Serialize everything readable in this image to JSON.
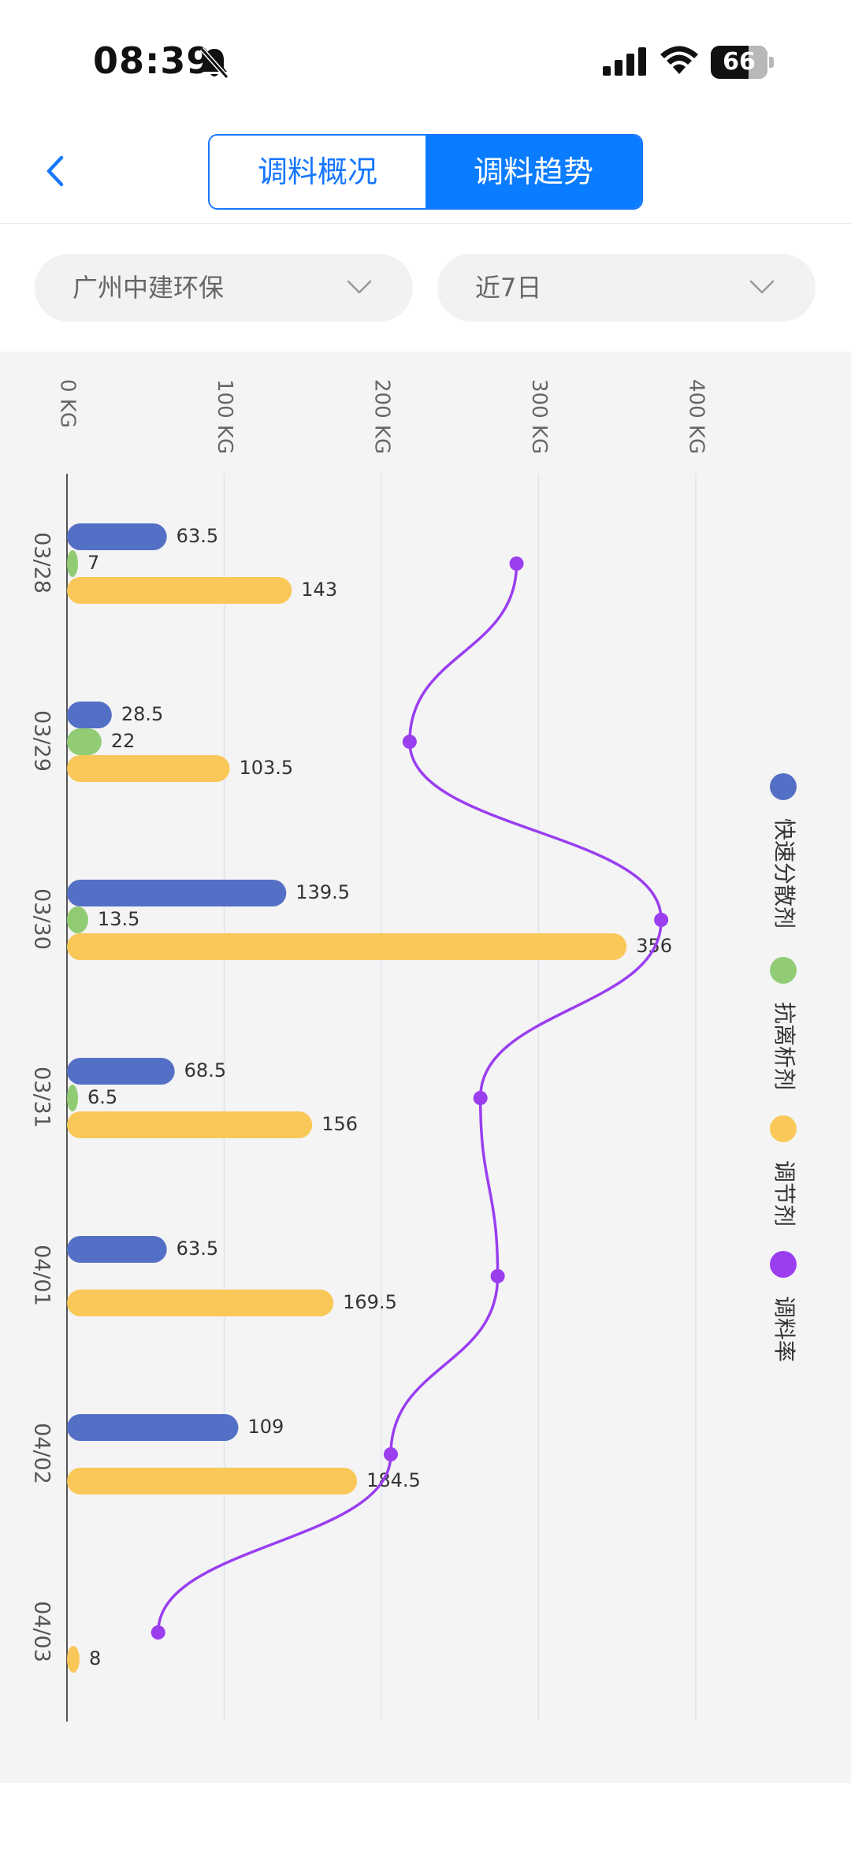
{
  "status_bar": {
    "time": "08:39",
    "battery": "66",
    "icons": [
      "bell-slash-icon",
      "cellular-signal-icon",
      "wifi-icon",
      "battery-icon"
    ]
  },
  "header": {
    "back_icon": "chevron-left-icon",
    "tabs": [
      {
        "label": "调料概况",
        "active": false
      },
      {
        "label": "调料趋势",
        "active": true
      }
    ],
    "accent_color": "#0a7cff"
  },
  "filters": {
    "company": {
      "label": "广州中建环保",
      "icon": "chevron-down-icon"
    },
    "period": {
      "label": "近7日",
      "icon": "chevron-down-icon"
    }
  },
  "chart_data": {
    "type": "bar",
    "orientation": "horizontal",
    "categories": [
      "03/28",
      "03/29",
      "03/30",
      "03/31",
      "04/01",
      "04/02",
      "04/03"
    ],
    "series": [
      {
        "name": "快速分散剂",
        "color": "#5470c6",
        "values": [
          63.5,
          28.5,
          139.5,
          68.5,
          63.5,
          109,
          0
        ],
        "labels": [
          "63.5",
          "28.5",
          "139.5",
          "68.5",
          "63.5",
          "109",
          ""
        ]
      },
      {
        "name": "抗离析剂",
        "color": "#91cc75",
        "values": [
          7,
          22,
          13.5,
          6.5,
          0,
          0,
          0
        ],
        "labels": [
          "7",
          "22",
          "13.5",
          "6.5",
          "",
          "",
          ""
        ]
      },
      {
        "name": "调节剂",
        "color": "#fac858",
        "values": [
          143,
          103.5,
          356,
          156,
          169.5,
          184.5,
          8
        ],
        "labels": [
          "143",
          "103.5",
          "356",
          "156",
          "169.5",
          "184.5",
          "8"
        ]
      },
      {
        "name": "调料率",
        "type": "line",
        "color": "#9a3ef0",
        "values": [
          286,
          218,
          378,
          263,
          274,
          206,
          58
        ]
      }
    ],
    "value_axis": {
      "ticks": [
        0,
        100,
        200,
        300,
        400
      ],
      "tick_labels": [
        "0 KG",
        "100 KG",
        "200 KG",
        "300 KG",
        "400 KG"
      ],
      "range": [
        0,
        400
      ]
    },
    "legend": {
      "position": "right",
      "orientation": "vertical"
    },
    "grid": true
  }
}
